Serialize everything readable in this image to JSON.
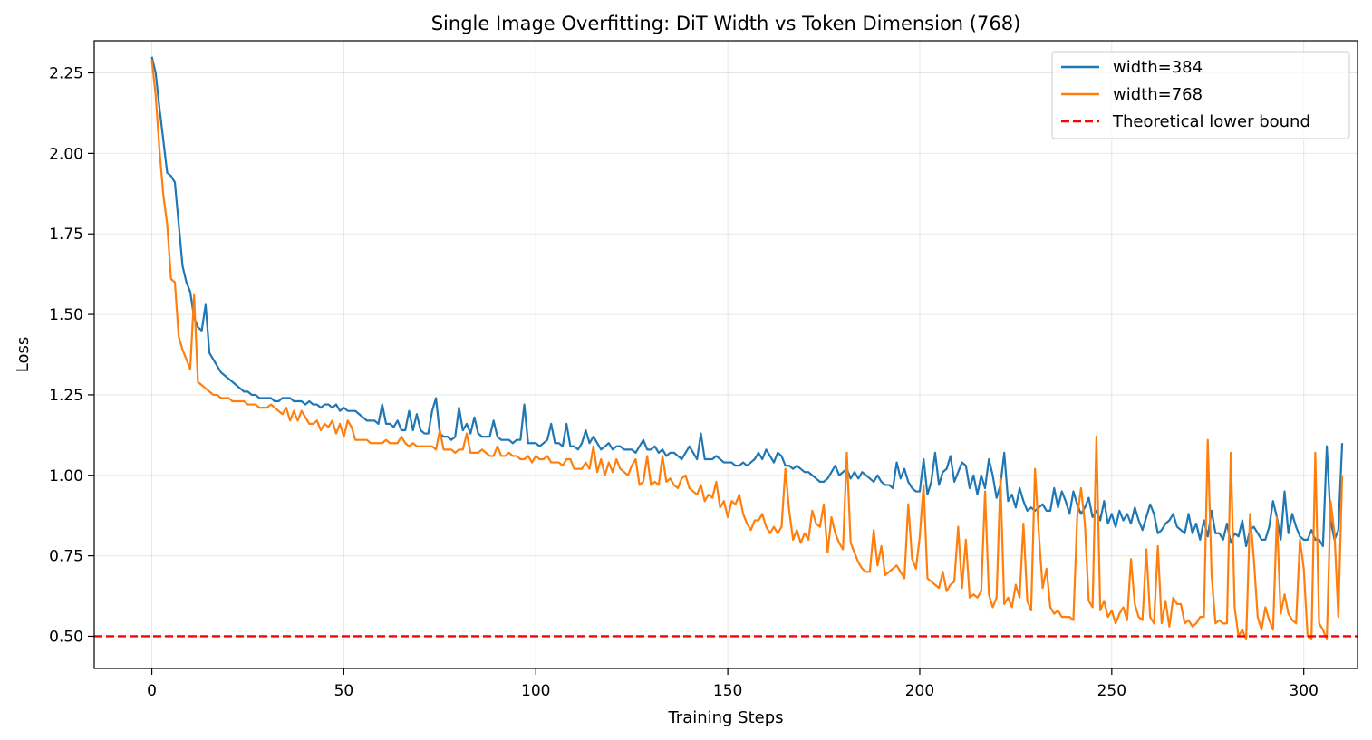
{
  "chart_data": {
    "type": "line",
    "title": "Single Image Overfitting: DiT Width vs Token Dimension (768)",
    "xlabel": "Training Steps",
    "ylabel": "Loss",
    "xlim": [
      -15,
      314
    ],
    "ylim": [
      0.4,
      2.35
    ],
    "xticks": [
      0,
      50,
      100,
      150,
      200,
      250,
      300
    ],
    "yticks": [
      0.5,
      0.75,
      1.0,
      1.25,
      1.5,
      1.75,
      2.0,
      2.25
    ],
    "xtick_labels": [
      "0",
      "50",
      "100",
      "150",
      "200",
      "250",
      "300"
    ],
    "ytick_labels": [
      "0.50",
      "0.75",
      "1.00",
      "1.25",
      "1.50",
      "1.75",
      "2.00",
      "2.25"
    ],
    "grid": true,
    "legend_position": "top-right",
    "series": [
      {
        "name": "width=384",
        "color": "#1f77b4",
        "values": [
          2.3,
          2.25,
          2.14,
          2.04,
          1.94,
          1.93,
          1.91,
          1.78,
          1.65,
          1.6,
          1.57,
          1.49,
          1.46,
          1.45,
          1.53,
          1.38,
          1.36,
          1.34,
          1.32,
          1.31,
          1.3,
          1.29,
          1.28,
          1.27,
          1.26,
          1.26,
          1.25,
          1.25,
          1.24,
          1.24,
          1.24,
          1.24,
          1.23,
          1.23,
          1.24,
          1.24,
          1.24,
          1.23,
          1.23,
          1.23,
          1.22,
          1.23,
          1.22,
          1.22,
          1.21,
          1.22,
          1.22,
          1.21,
          1.22,
          1.2,
          1.21,
          1.2,
          1.2,
          1.2,
          1.19,
          1.18,
          1.17,
          1.17,
          1.17,
          1.16,
          1.22,
          1.16,
          1.16,
          1.15,
          1.17,
          1.14,
          1.14,
          1.2,
          1.14,
          1.19,
          1.14,
          1.13,
          1.13,
          1.2,
          1.24,
          1.13,
          1.12,
          1.12,
          1.11,
          1.12,
          1.21,
          1.14,
          1.16,
          1.13,
          1.18,
          1.13,
          1.12,
          1.12,
          1.12,
          1.17,
          1.12,
          1.11,
          1.11,
          1.11,
          1.1,
          1.11,
          1.11,
          1.22,
          1.1,
          1.1,
          1.1,
          1.09,
          1.1,
          1.11,
          1.16,
          1.1,
          1.1,
          1.09,
          1.16,
          1.09,
          1.09,
          1.08,
          1.1,
          1.14,
          1.1,
          1.12,
          1.1,
          1.08,
          1.09,
          1.1,
          1.08,
          1.09,
          1.09,
          1.08,
          1.08,
          1.08,
          1.07,
          1.09,
          1.11,
          1.08,
          1.08,
          1.09,
          1.07,
          1.08,
          1.06,
          1.07,
          1.07,
          1.06,
          1.05,
          1.07,
          1.09,
          1.07,
          1.05,
          1.13,
          1.05,
          1.05,
          1.05,
          1.06,
          1.05,
          1.04,
          1.04,
          1.04,
          1.03,
          1.03,
          1.04,
          1.03,
          1.04,
          1.05,
          1.07,
          1.05,
          1.08,
          1.06,
          1.04,
          1.07,
          1.06,
          1.03,
          1.03,
          1.02,
          1.03,
          1.02,
          1.01,
          1.01,
          1.0,
          0.99,
          0.98,
          0.98,
          0.99,
          1.01,
          1.03,
          1.0,
          1.01,
          1.02,
          0.99,
          1.01,
          0.99,
          1.01,
          1.0,
          0.99,
          0.98,
          1.0,
          0.98,
          0.97,
          0.97,
          0.96,
          1.04,
          0.99,
          1.02,
          0.98,
          0.96,
          0.95,
          0.95,
          1.05,
          0.94,
          0.98,
          1.07,
          0.97,
          1.01,
          1.02,
          1.06,
          0.98,
          1.01,
          1.04,
          1.03,
          0.96,
          1.0,
          0.94,
          1.0,
          0.96,
          1.05,
          1.0,
          0.93,
          0.97,
          1.07,
          0.92,
          0.94,
          0.9,
          0.96,
          0.92,
          0.89,
          0.9,
          0.89,
          0.9,
          0.91,
          0.89,
          0.89,
          0.96,
          0.9,
          0.95,
          0.92,
          0.88,
          0.95,
          0.91,
          0.88,
          0.9,
          0.93,
          0.87,
          0.89,
          0.86,
          0.92,
          0.85,
          0.88,
          0.84,
          0.89,
          0.86,
          0.88,
          0.85,
          0.9,
          0.86,
          0.83,
          0.87,
          0.91,
          0.88,
          0.82,
          0.83,
          0.85,
          0.86,
          0.88,
          0.84,
          0.83,
          0.82,
          0.88,
          0.82,
          0.85,
          0.8,
          0.86,
          0.81,
          0.89,
          0.82,
          0.82,
          0.8,
          0.85,
          0.79,
          0.82,
          0.81,
          0.86,
          0.78,
          0.83,
          0.84,
          0.82,
          0.8,
          0.8,
          0.84,
          0.92,
          0.87,
          0.8,
          0.95,
          0.82,
          0.88,
          0.84,
          0.81,
          0.8,
          0.8,
          0.83,
          0.8,
          0.8,
          0.78,
          1.09,
          0.86,
          0.8,
          0.83,
          1.1
        ],
        "note_sample_steps_every_1": true
      },
      {
        "name": "width=768",
        "color": "#ff7f0e",
        "values": [
          2.29,
          2.18,
          2.01,
          1.87,
          1.78,
          1.61,
          1.6,
          1.43,
          1.39,
          1.36,
          1.33,
          1.56,
          1.29,
          1.28,
          1.27,
          1.26,
          1.25,
          1.25,
          1.24,
          1.24,
          1.24,
          1.23,
          1.23,
          1.23,
          1.23,
          1.22,
          1.22,
          1.22,
          1.21,
          1.21,
          1.21,
          1.22,
          1.21,
          1.2,
          1.19,
          1.21,
          1.17,
          1.2,
          1.17,
          1.2,
          1.18,
          1.16,
          1.16,
          1.17,
          1.14,
          1.16,
          1.15,
          1.17,
          1.13,
          1.16,
          1.12,
          1.17,
          1.15,
          1.11,
          1.11,
          1.11,
          1.11,
          1.1,
          1.1,
          1.1,
          1.1,
          1.11,
          1.1,
          1.1,
          1.1,
          1.12,
          1.1,
          1.09,
          1.1,
          1.09,
          1.09,
          1.09,
          1.09,
          1.09,
          1.08,
          1.14,
          1.08,
          1.08,
          1.08,
          1.07,
          1.08,
          1.08,
          1.13,
          1.07,
          1.07,
          1.07,
          1.08,
          1.07,
          1.06,
          1.06,
          1.09,
          1.06,
          1.06,
          1.07,
          1.06,
          1.06,
          1.05,
          1.05,
          1.06,
          1.04,
          1.06,
          1.05,
          1.05,
          1.06,
          1.04,
          1.04,
          1.04,
          1.03,
          1.05,
          1.05,
          1.02,
          1.02,
          1.02,
          1.04,
          1.02,
          1.09,
          1.01,
          1.05,
          1.0,
          1.04,
          1.01,
          1.05,
          1.02,
          1.01,
          1.0,
          1.03,
          1.05,
          0.97,
          0.98,
          1.06,
          0.97,
          0.98,
          0.97,
          1.06,
          0.98,
          0.99,
          0.97,
          0.96,
          0.99,
          1.0,
          0.96,
          0.95,
          0.94,
          0.97,
          0.92,
          0.94,
          0.93,
          0.98,
          0.9,
          0.92,
          0.87,
          0.92,
          0.91,
          0.94,
          0.88,
          0.85,
          0.83,
          0.86,
          0.86,
          0.88,
          0.84,
          0.82,
          0.84,
          0.82,
          0.84,
          1.02,
          0.89,
          0.8,
          0.83,
          0.79,
          0.82,
          0.8,
          0.89,
          0.85,
          0.84,
          0.91,
          0.76,
          0.87,
          0.82,
          0.79,
          0.77,
          1.07,
          0.79,
          0.76,
          0.73,
          0.71,
          0.7,
          0.7,
          0.83,
          0.72,
          0.78,
          0.69,
          0.7,
          0.71,
          0.72,
          0.7,
          0.68,
          0.91,
          0.74,
          0.71,
          0.81,
          0.97,
          0.68,
          0.67,
          0.66,
          0.65,
          0.7,
          0.64,
          0.66,
          0.67,
          0.84,
          0.65,
          0.8,
          0.62,
          0.63,
          0.62,
          0.64,
          0.95,
          0.63,
          0.59,
          0.62,
          0.99,
          0.6,
          0.62,
          0.59,
          0.66,
          0.62,
          0.85,
          0.61,
          0.58,
          1.02,
          0.82,
          0.65,
          0.71,
          0.59,
          0.57,
          0.58,
          0.56,
          0.56,
          0.56,
          0.55,
          0.87,
          0.96,
          0.85,
          0.61,
          0.59,
          1.12,
          0.58,
          0.61,
          0.56,
          0.58,
          0.54,
          0.57,
          0.59,
          0.55,
          0.74,
          0.6,
          0.56,
          0.55,
          0.77,
          0.56,
          0.54,
          0.78,
          0.54,
          0.61,
          0.53,
          0.62,
          0.6,
          0.6,
          0.54,
          0.55,
          0.53,
          0.54,
          0.56,
          0.56,
          1.11,
          0.69,
          0.54,
          0.55,
          0.54,
          0.54,
          1.07,
          0.59,
          0.5,
          0.52,
          0.49,
          0.88,
          0.74,
          0.56,
          0.52,
          0.59,
          0.55,
          0.52,
          0.87,
          0.57,
          0.63,
          0.57,
          0.55,
          0.54,
          0.8,
          0.71,
          0.5,
          0.49,
          1.07,
          0.54,
          0.52,
          0.49,
          0.92,
          0.82,
          0.56,
          1.0
        ]
      },
      {
        "name": "Theoretical lower bound",
        "color": "#ff0000",
        "style": "dashed",
        "y": 0.5
      }
    ]
  }
}
